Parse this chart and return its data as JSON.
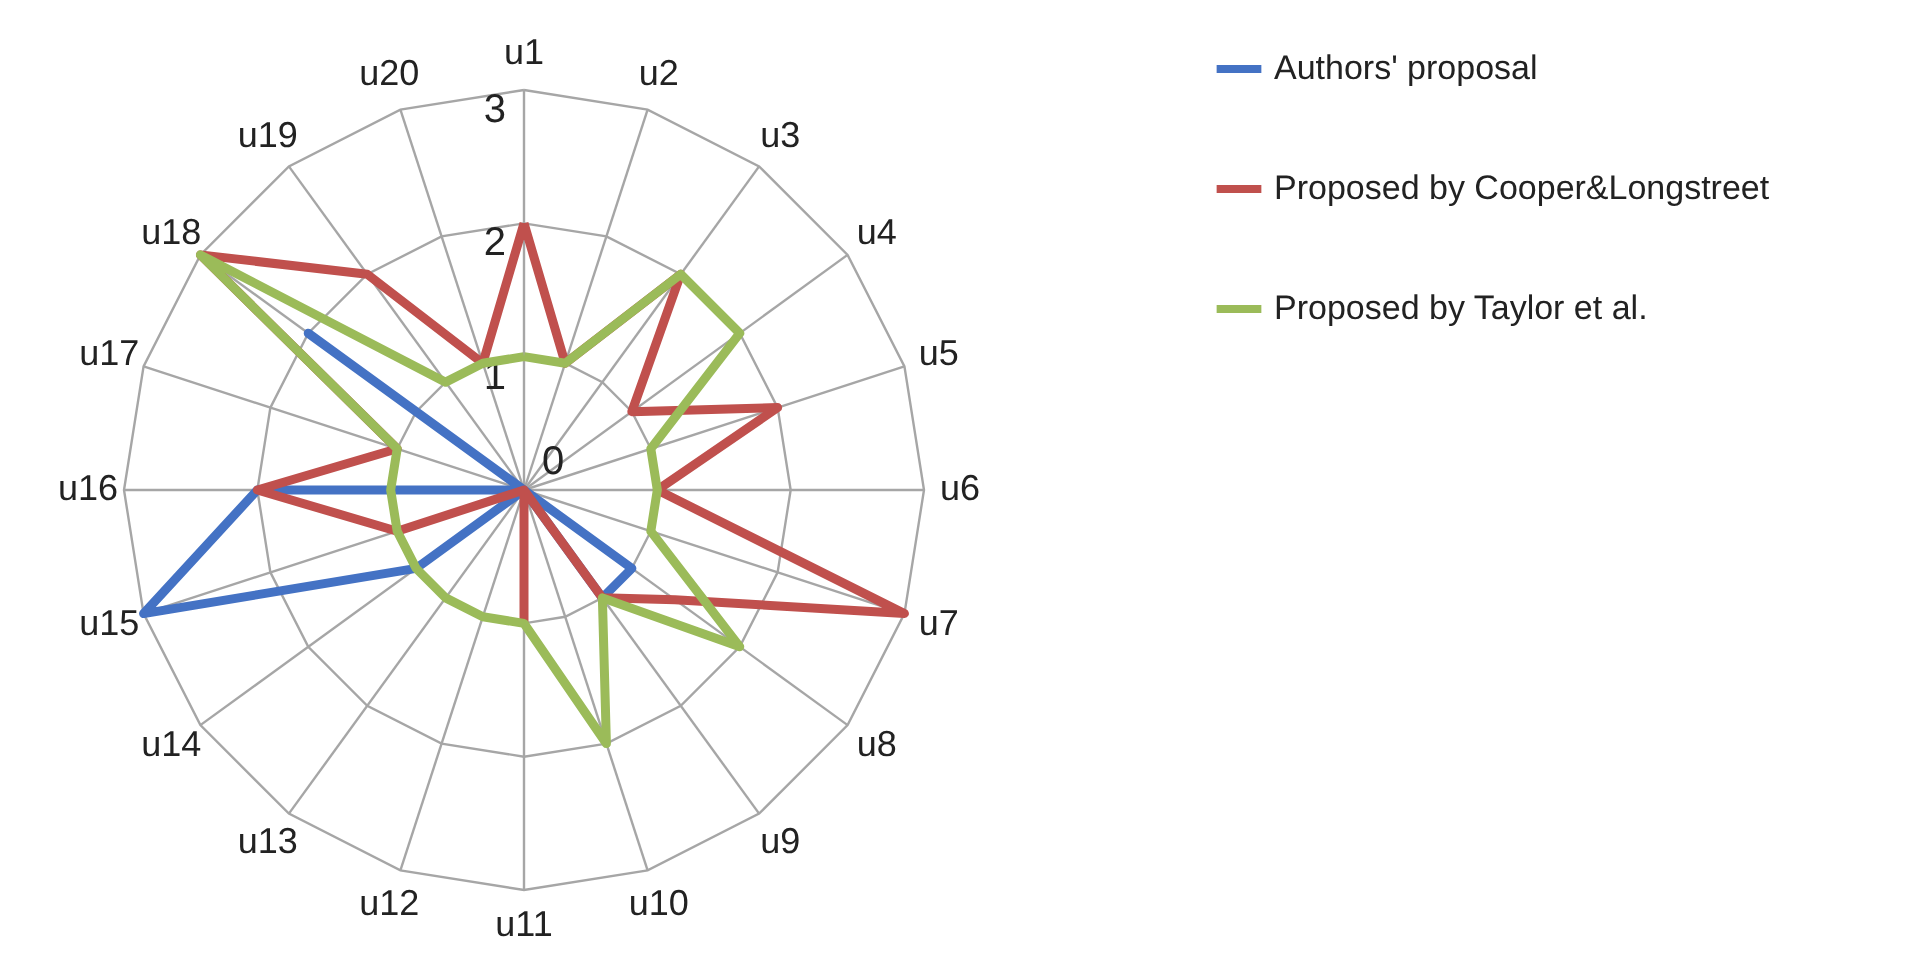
{
  "chart_data": {
    "type": "radar",
    "categories": [
      "u1",
      "u2",
      "u3",
      "u4",
      "u5",
      "u6",
      "u7",
      "u8",
      "u9",
      "u10",
      "u11",
      "u12",
      "u13",
      "u14",
      "u15",
      "u16",
      "u17",
      "u18",
      "u19",
      "u20"
    ],
    "series": [
      {
        "name": "Authors' proposal",
        "color": "#4472c4",
        "values": [
          0,
          0,
          0,
          0,
          0,
          0,
          0,
          1,
          1,
          0,
          0,
          0,
          0,
          1,
          3,
          2,
          0,
          2,
          0,
          0
        ]
      },
      {
        "name": "Proposed by Cooper&Longstreet",
        "color": "#c0504d",
        "values": [
          2,
          1,
          2,
          1,
          2,
          1,
          3,
          1.4,
          1,
          0,
          1,
          0,
          0,
          0,
          1,
          2,
          1,
          3,
          2,
          1
        ]
      },
      {
        "name": "Proposed by Taylor et al.",
        "color": "#9bbb59",
        "values": [
          1,
          1,
          2,
          2,
          1,
          1,
          1,
          2,
          1,
          2,
          1,
          1,
          1,
          1,
          1,
          1,
          1,
          3,
          1,
          1
        ]
      }
    ],
    "ylim": [
      0,
      3
    ],
    "yticks": [
      0,
      1,
      2,
      3
    ],
    "grid": true,
    "legend": "right"
  }
}
